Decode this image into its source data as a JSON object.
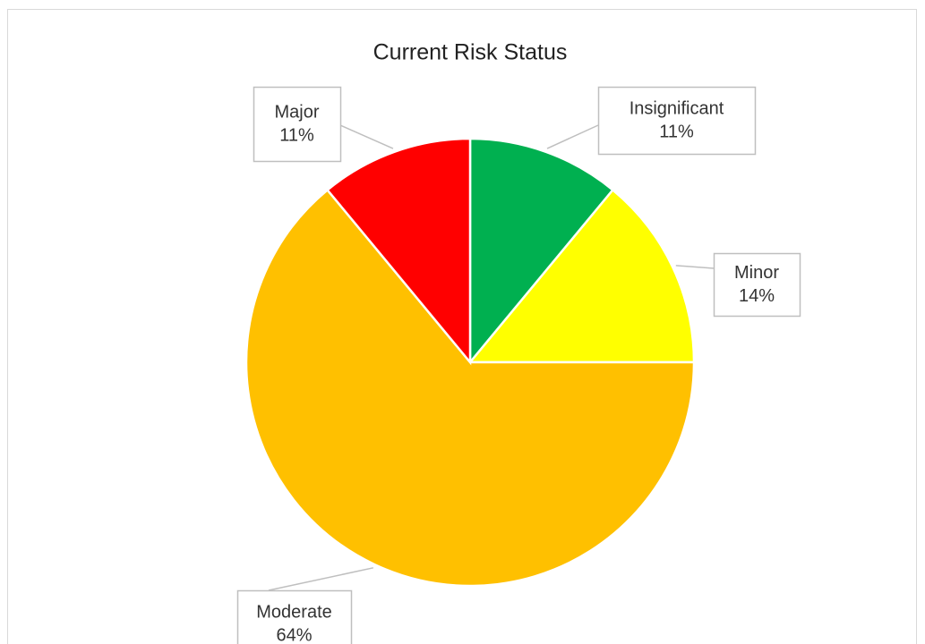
{
  "chart_data": {
    "type": "pie",
    "title": "Current Risk Status",
    "categories": [
      "Insignificant",
      "Minor",
      "Moderate",
      "Major"
    ],
    "values": [
      11,
      14,
      64,
      11
    ],
    "value_labels": [
      "11%",
      "14%",
      "64%",
      "11%"
    ],
    "colors": [
      "#00b050",
      "#ffff00",
      "#ffc000",
      "#ff0000"
    ]
  }
}
